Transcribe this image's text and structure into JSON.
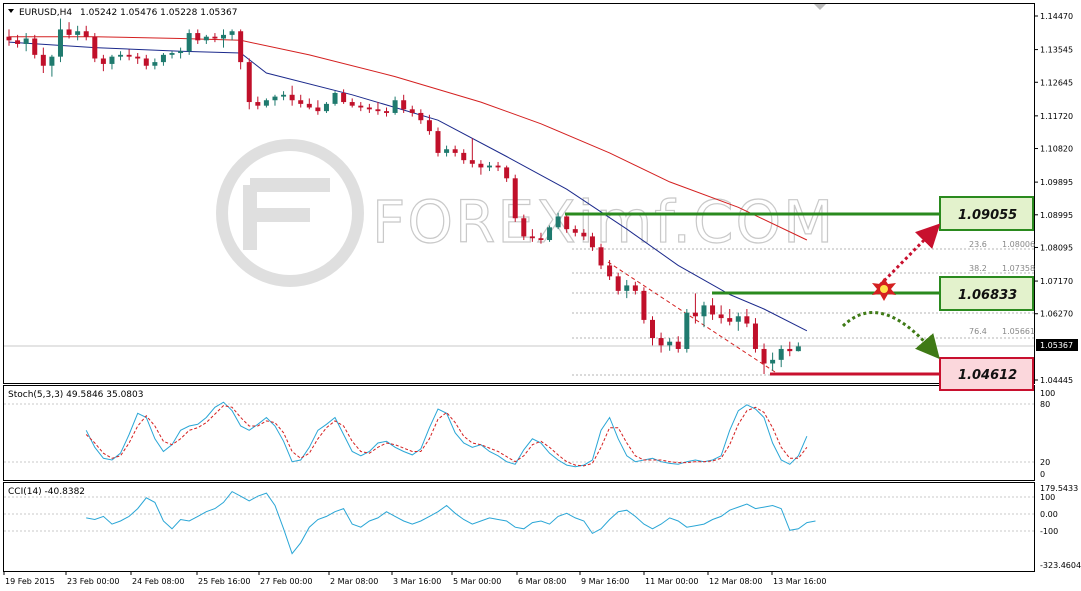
{
  "header": {
    "symbol": "EURUSD,H4",
    "ohlc": "1.05242 1.05476 1.05228 1.05367"
  },
  "watermark": "FOREXimf.COM",
  "price_axis": {
    "ticks": [
      "1.14470",
      "1.13545",
      "1.12645",
      "1.11720",
      "1.10820",
      "1.09895",
      "1.08995",
      "1.08095",
      "1.07170",
      "1.06270",
      "1.05367",
      "1.04445"
    ],
    "current_label": "1.05367"
  },
  "levels": {
    "resistance_2": "1.09055",
    "resistance_1": "1.06833",
    "support": "1.04612"
  },
  "fib": [
    {
      "ratio": "23.6",
      "price": "1.08006"
    },
    {
      "ratio": "38.2",
      "price": "1.07358"
    },
    {
      "ratio": "76.4",
      "price": "1.05661"
    }
  ],
  "stoch": {
    "title": "Stoch(5,3,3) 49.5846 35.0803",
    "ticks": [
      "100",
      "80",
      "20",
      "0"
    ]
  },
  "cci": {
    "title": "CCI(14) -40.8382",
    "ticks": [
      "179.5433",
      "100",
      "0.00",
      "-100",
      "-323.4604"
    ]
  },
  "time_axis": [
    "19 Feb 2015",
    "23 Feb 00:00",
    "24 Feb 08:00",
    "25 Feb 16:00",
    "27 Feb 00:00",
    "2 Mar 08:00",
    "3 Mar 16:00",
    "5 Mar 00:00",
    "6 Mar 08:00",
    "9 Mar 16:00",
    "11 Mar 00:00",
    "12 Mar 08:00",
    "13 Mar 16:00"
  ],
  "colors": {
    "bull": "#1f7a6e",
    "bear": "#c0102a",
    "ma_fast": "#1c2a8c",
    "ma_slow": "#d42020",
    "green_level": "#2a8a1e",
    "red_level": "#c8102e",
    "indicator": "#2aa6d6"
  },
  "chart_data": {
    "type": "candlestick",
    "candles": [
      {
        "o": 1.139,
        "h": 1.141,
        "l": 1.1365,
        "c": 1.138
      },
      {
        "o": 1.138,
        "h": 1.1395,
        "l": 1.136,
        "c": 1.137
      },
      {
        "o": 1.137,
        "h": 1.14,
        "l": 1.135,
        "c": 1.1385
      },
      {
        "o": 1.1385,
        "h": 1.1395,
        "l": 1.133,
        "c": 1.134
      },
      {
        "o": 1.134,
        "h": 1.136,
        "l": 1.129,
        "c": 1.131
      },
      {
        "o": 1.131,
        "h": 1.134,
        "l": 1.128,
        "c": 1.1335
      },
      {
        "o": 1.1335,
        "h": 1.144,
        "l": 1.132,
        "c": 1.141
      },
      {
        "o": 1.141,
        "h": 1.143,
        "l": 1.1385,
        "c": 1.1395
      },
      {
        "o": 1.1395,
        "h": 1.142,
        "l": 1.138,
        "c": 1.1405
      },
      {
        "o": 1.1405,
        "h": 1.142,
        "l": 1.138,
        "c": 1.139
      },
      {
        "o": 1.139,
        "h": 1.14,
        "l": 1.132,
        "c": 1.133
      },
      {
        "o": 1.133,
        "h": 1.134,
        "l": 1.1295,
        "c": 1.1315
      },
      {
        "o": 1.1315,
        "h": 1.134,
        "l": 1.13,
        "c": 1.1335
      },
      {
        "o": 1.1335,
        "h": 1.135,
        "l": 1.1325,
        "c": 1.134
      },
      {
        "o": 1.134,
        "h": 1.1355,
        "l": 1.1325,
        "c": 1.1335
      },
      {
        "o": 1.1335,
        "h": 1.1345,
        "l": 1.1315,
        "c": 1.133
      },
      {
        "o": 1.133,
        "h": 1.134,
        "l": 1.13,
        "c": 1.131
      },
      {
        "o": 1.131,
        "h": 1.133,
        "l": 1.13,
        "c": 1.132
      },
      {
        "o": 1.132,
        "h": 1.1345,
        "l": 1.131,
        "c": 1.134
      },
      {
        "o": 1.134,
        "h": 1.135,
        "l": 1.133,
        "c": 1.1345
      },
      {
        "o": 1.1345,
        "h": 1.136,
        "l": 1.133,
        "c": 1.135
      },
      {
        "o": 1.135,
        "h": 1.141,
        "l": 1.134,
        "c": 1.14
      },
      {
        "o": 1.14,
        "h": 1.141,
        "l": 1.137,
        "c": 1.138
      },
      {
        "o": 1.138,
        "h": 1.1395,
        "l": 1.137,
        "c": 1.139
      },
      {
        "o": 1.139,
        "h": 1.14,
        "l": 1.1375,
        "c": 1.1385
      },
      {
        "o": 1.1385,
        "h": 1.141,
        "l": 1.136,
        "c": 1.1395
      },
      {
        "o": 1.1395,
        "h": 1.141,
        "l": 1.138,
        "c": 1.1405
      },
      {
        "o": 1.1405,
        "h": 1.141,
        "l": 1.13,
        "c": 1.132
      },
      {
        "o": 1.132,
        "h": 1.133,
        "l": 1.119,
        "c": 1.121
      },
      {
        "o": 1.121,
        "h": 1.1225,
        "l": 1.119,
        "c": 1.12
      },
      {
        "o": 1.12,
        "h": 1.122,
        "l": 1.1195,
        "c": 1.1215
      },
      {
        "o": 1.1215,
        "h": 1.123,
        "l": 1.12,
        "c": 1.1225
      },
      {
        "o": 1.1225,
        "h": 1.124,
        "l": 1.1215,
        "c": 1.123
      },
      {
        "o": 1.123,
        "h": 1.1255,
        "l": 1.12,
        "c": 1.1215
      },
      {
        "o": 1.1215,
        "h": 1.123,
        "l": 1.1195,
        "c": 1.1205
      },
      {
        "o": 1.1205,
        "h": 1.122,
        "l": 1.119,
        "c": 1.1195
      },
      {
        "o": 1.1195,
        "h": 1.1215,
        "l": 1.1175,
        "c": 1.1185
      },
      {
        "o": 1.1185,
        "h": 1.121,
        "l": 1.118,
        "c": 1.1205
      },
      {
        "o": 1.1205,
        "h": 1.124,
        "l": 1.12,
        "c": 1.1235
      },
      {
        "o": 1.1235,
        "h": 1.1245,
        "l": 1.1205,
        "c": 1.121
      },
      {
        "o": 1.121,
        "h": 1.122,
        "l": 1.1195,
        "c": 1.12
      },
      {
        "o": 1.12,
        "h": 1.121,
        "l": 1.1185,
        "c": 1.1195
      },
      {
        "o": 1.1195,
        "h": 1.1205,
        "l": 1.118,
        "c": 1.119
      },
      {
        "o": 1.119,
        "h": 1.121,
        "l": 1.1175,
        "c": 1.1185
      },
      {
        "o": 1.1185,
        "h": 1.1195,
        "l": 1.117,
        "c": 1.118
      },
      {
        "o": 1.118,
        "h": 1.1225,
        "l": 1.1175,
        "c": 1.1215
      },
      {
        "o": 1.1215,
        "h": 1.123,
        "l": 1.118,
        "c": 1.119
      },
      {
        "o": 1.119,
        "h": 1.12,
        "l": 1.117,
        "c": 1.118
      },
      {
        "o": 1.118,
        "h": 1.119,
        "l": 1.115,
        "c": 1.116
      },
      {
        "o": 1.116,
        "h": 1.1175,
        "l": 1.112,
        "c": 1.113
      },
      {
        "o": 1.113,
        "h": 1.114,
        "l": 1.106,
        "c": 1.107
      },
      {
        "o": 1.107,
        "h": 1.109,
        "l": 1.106,
        "c": 1.108
      },
      {
        "o": 1.108,
        "h": 1.109,
        "l": 1.106,
        "c": 1.107
      },
      {
        "o": 1.107,
        "h": 1.108,
        "l": 1.104,
        "c": 1.105
      },
      {
        "o": 1.105,
        "h": 1.111,
        "l": 1.103,
        "c": 1.104
      },
      {
        "o": 1.104,
        "h": 1.105,
        "l": 1.101,
        "c": 1.103
      },
      {
        "o": 1.103,
        "h": 1.1045,
        "l": 1.102,
        "c": 1.1035
      },
      {
        "o": 1.1035,
        "h": 1.1045,
        "l": 1.102,
        "c": 1.103
      },
      {
        "o": 1.103,
        "h": 1.1035,
        "l": 1.099,
        "c": 1.1
      },
      {
        "o": 1.1,
        "h": 1.101,
        "l": 1.088,
        "c": 1.089
      },
      {
        "o": 1.089,
        "h": 1.09,
        "l": 1.083,
        "c": 1.084
      },
      {
        "o": 1.084,
        "h": 1.086,
        "l": 1.0825,
        "c": 1.0835
      },
      {
        "o": 1.0835,
        "h": 1.085,
        "l": 1.082,
        "c": 1.083
      },
      {
        "o": 1.083,
        "h": 1.087,
        "l": 1.0825,
        "c": 1.0865
      },
      {
        "o": 1.0865,
        "h": 1.0905,
        "l": 1.086,
        "c": 1.0895
      },
      {
        "o": 1.0895,
        "h": 1.0905,
        "l": 1.085,
        "c": 1.086
      },
      {
        "o": 1.086,
        "h": 1.087,
        "l": 1.084,
        "c": 1.085
      },
      {
        "o": 1.085,
        "h": 1.086,
        "l": 1.083,
        "c": 1.084
      },
      {
        "o": 1.084,
        "h": 1.085,
        "l": 1.08,
        "c": 1.081
      },
      {
        "o": 1.081,
        "h": 1.082,
        "l": 1.075,
        "c": 1.076
      },
      {
        "o": 1.076,
        "h": 1.0775,
        "l": 1.072,
        "c": 1.073
      },
      {
        "o": 1.073,
        "h": 1.074,
        "l": 1.068,
        "c": 1.069
      },
      {
        "o": 1.069,
        "h": 1.072,
        "l": 1.067,
        "c": 1.0705
      },
      {
        "o": 1.0705,
        "h": 1.0715,
        "l": 1.068,
        "c": 1.069
      },
      {
        "o": 1.069,
        "h": 1.07,
        "l": 1.06,
        "c": 1.061
      },
      {
        "o": 1.061,
        "h": 1.062,
        "l": 1.054,
        "c": 1.056
      },
      {
        "o": 1.056,
        "h": 1.0575,
        "l": 1.052,
        "c": 1.054
      },
      {
        "o": 1.054,
        "h": 1.056,
        "l": 1.0525,
        "c": 1.055
      },
      {
        "o": 1.055,
        "h": 1.0565,
        "l": 1.052,
        "c": 1.053
      },
      {
        "o": 1.053,
        "h": 1.064,
        "l": 1.052,
        "c": 1.063
      },
      {
        "o": 1.063,
        "h": 1.0683,
        "l": 1.06,
        "c": 1.062
      },
      {
        "o": 1.062,
        "h": 1.066,
        "l": 1.059,
        "c": 1.065
      },
      {
        "o": 1.065,
        "h": 1.067,
        "l": 1.061,
        "c": 1.0625
      },
      {
        "o": 1.0625,
        "h": 1.065,
        "l": 1.06,
        "c": 1.0615
      },
      {
        "o": 1.0615,
        "h": 1.064,
        "l": 1.0595,
        "c": 1.0605
      },
      {
        "o": 1.0605,
        "h": 1.063,
        "l": 1.058,
        "c": 1.062
      },
      {
        "o": 1.062,
        "h": 1.064,
        "l": 1.059,
        "c": 1.06
      },
      {
        "o": 1.06,
        "h": 1.0615,
        "l": 1.052,
        "c": 1.053
      },
      {
        "o": 1.053,
        "h": 1.0545,
        "l": 1.0461,
        "c": 1.049
      },
      {
        "o": 1.049,
        "h": 1.052,
        "l": 1.047,
        "c": 1.05
      },
      {
        "o": 1.05,
        "h": 1.054,
        "l": 1.048,
        "c": 1.053
      },
      {
        "o": 1.053,
        "h": 1.055,
        "l": 1.051,
        "c": 1.0524
      },
      {
        "o": 1.0524,
        "h": 1.0548,
        "l": 1.0523,
        "c": 1.0537
      }
    ],
    "ma_fast": [
      [
        0,
        1.1375
      ],
      [
        10,
        1.136
      ],
      [
        20,
        1.135
      ],
      [
        27,
        1.1345
      ],
      [
        30,
        1.129
      ],
      [
        40,
        1.123
      ],
      [
        50,
        1.116
      ],
      [
        58,
        1.106
      ],
      [
        65,
        1.097
      ],
      [
        72,
        1.086
      ],
      [
        78,
        1.076
      ],
      [
        84,
        1.068
      ],
      [
        88,
        1.064
      ],
      [
        93,
        1.058
      ]
    ],
    "ma_slow": [
      [
        0,
        1.139
      ],
      [
        10,
        1.139
      ],
      [
        20,
        1.1385
      ],
      [
        27,
        1.138
      ],
      [
        35,
        1.134
      ],
      [
        45,
        1.128
      ],
      [
        55,
        1.121
      ],
      [
        62,
        1.115
      ],
      [
        70,
        1.107
      ],
      [
        77,
        1.099
      ],
      [
        85,
        1.092
      ],
      [
        93,
        1.083
      ]
    ],
    "stoch_main": [
      55,
      35,
      22,
      20,
      28,
      50,
      75,
      70,
      45,
      30,
      38,
      55,
      60,
      62,
      70,
      82,
      88,
      78,
      60,
      55,
      62,
      70,
      60,
      42,
      18,
      20,
      35,
      55,
      62,
      70,
      50,
      30,
      25,
      30,
      40,
      42,
      35,
      30,
      26,
      33,
      58,
      80,
      75,
      52,
      40,
      35,
      38,
      30,
      25,
      18,
      15,
      32,
      45,
      40,
      28,
      20,
      14,
      12,
      14,
      20,
      55,
      70,
      45,
      25,
      18,
      20,
      22,
      18,
      16,
      15,
      18,
      20,
      18,
      20,
      25,
      55,
      78,
      85,
      80,
      70,
      40,
      20,
      15,
      25,
      48
    ],
    "stoch_signal": [
      50,
      40,
      28,
      22,
      25,
      40,
      60,
      72,
      60,
      42,
      38,
      45,
      55,
      58,
      64,
      74,
      84,
      82,
      70,
      60,
      60,
      66,
      64,
      52,
      30,
      22,
      28,
      45,
      58,
      66,
      60,
      42,
      30,
      28,
      35,
      40,
      38,
      34,
      30,
      30,
      45,
      68,
      76,
      64,
      48,
      40,
      38,
      34,
      30,
      24,
      18,
      25,
      38,
      42,
      35,
      26,
      18,
      14,
      13,
      16,
      35,
      58,
      58,
      40,
      25,
      20,
      20,
      20,
      18,
      17,
      17,
      18,
      18,
      19,
      22,
      38,
      62,
      78,
      82,
      76,
      58,
      35,
      22,
      22,
      35
    ],
    "cci": [
      -20,
      -30,
      -10,
      -60,
      -40,
      -10,
      40,
      110,
      80,
      -40,
      -90,
      -30,
      -40,
      -10,
      20,
      40,
      80,
      150,
      120,
      90,
      120,
      140,
      60,
      -90,
      -250,
      -180,
      -80,
      -30,
      -10,
      20,
      40,
      -60,
      -80,
      -40,
      -20,
      20,
      -10,
      -40,
      -60,
      -40,
      -10,
      20,
      60,
      10,
      -30,
      -60,
      -40,
      -20,
      -30,
      -40,
      -80,
      -90,
      -50,
      -40,
      -60,
      -10,
      10,
      -20,
      -40,
      -120,
      -90,
      -30,
      20,
      30,
      -10,
      -60,
      -90,
      -60,
      -20,
      -40,
      -80,
      -70,
      -60,
      -30,
      -10,
      30,
      50,
      70,
      40,
      50,
      60,
      40,
      -100,
      -90,
      -50,
      -40
    ]
  }
}
